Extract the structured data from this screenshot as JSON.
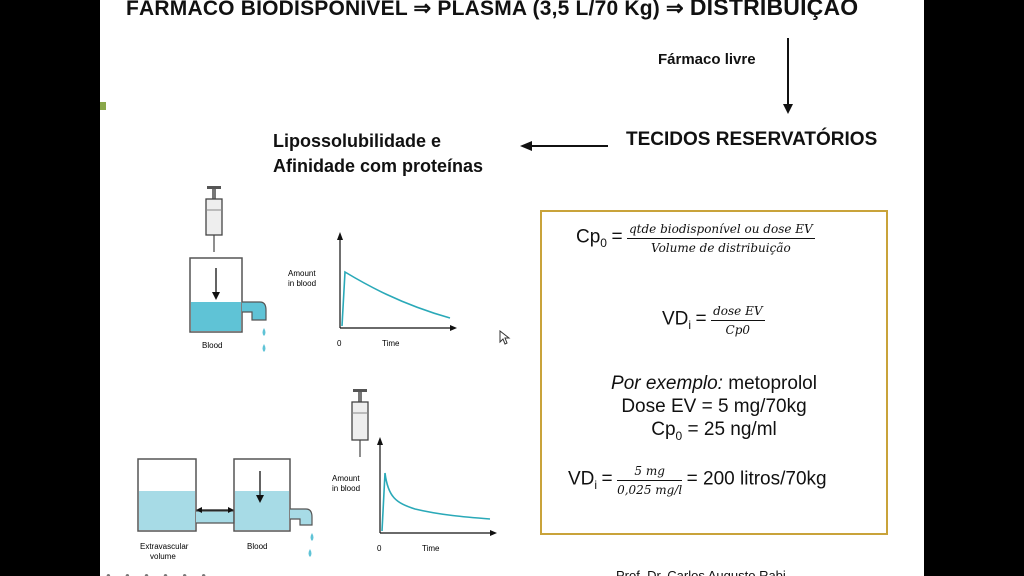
{
  "slide": {
    "title_left": "FÁRMACO BIODISPONÍVEL",
    "title_arrow1": "⇒",
    "title_mid": "PLASMA (3,5 L/70 Kg)",
    "title_arrow2": "⇒",
    "title_right": "DISTRIBUIÇÃO",
    "free_drug": "Fármaco livre",
    "tissues": "TECIDOS RESERVATÓRIOS",
    "lipo_line1": "Lipossolubilidade e",
    "lipo_line2": "Afinidade com proteínas",
    "footer": "Prof. Dr. Carlos Augusto Rabi..."
  },
  "figure": {
    "top": {
      "beaker_label": "Blood",
      "y_label_1": "Amount",
      "y_label_2": "in blood",
      "x_origin": "0",
      "x_label": "Time"
    },
    "bottom": {
      "beaker_left_label_1": "Extravascular",
      "beaker_left_label_2": "volume",
      "beaker_right_label": "Blood",
      "y_label_1": "Amount",
      "y_label_2": "in blood",
      "x_origin": "0",
      "x_label": "Time"
    }
  },
  "formulas": {
    "cp0_lhs": "Cp",
    "cp0_sub": "0",
    "eq": "=",
    "cp0_num": "qtde biodisponível ou dose EV",
    "cp0_den": "Volume de distribuição",
    "vd_lhs": "VD",
    "vd_sub": "i",
    "vd_num": "dose EV",
    "vd_den": "Cp0",
    "example_prefix": "Por exemplo:",
    "example_drug": " metoprolol",
    "dose_line": "Dose EV = 5 mg/70kg",
    "cp_line_lhs": "Cp",
    "cp_line_sub": "0",
    "cp_line_rhs": " = 25 ng/ml",
    "calc_num": "5 mg",
    "calc_den": "0,025 mg/l",
    "calc_result": "= 200 litros/70kg"
  },
  "colors": {
    "water": "#5fc3d6",
    "water_light": "#a7dbe6",
    "curve": "#2aa9b8",
    "box_border": "#c9a33a"
  }
}
